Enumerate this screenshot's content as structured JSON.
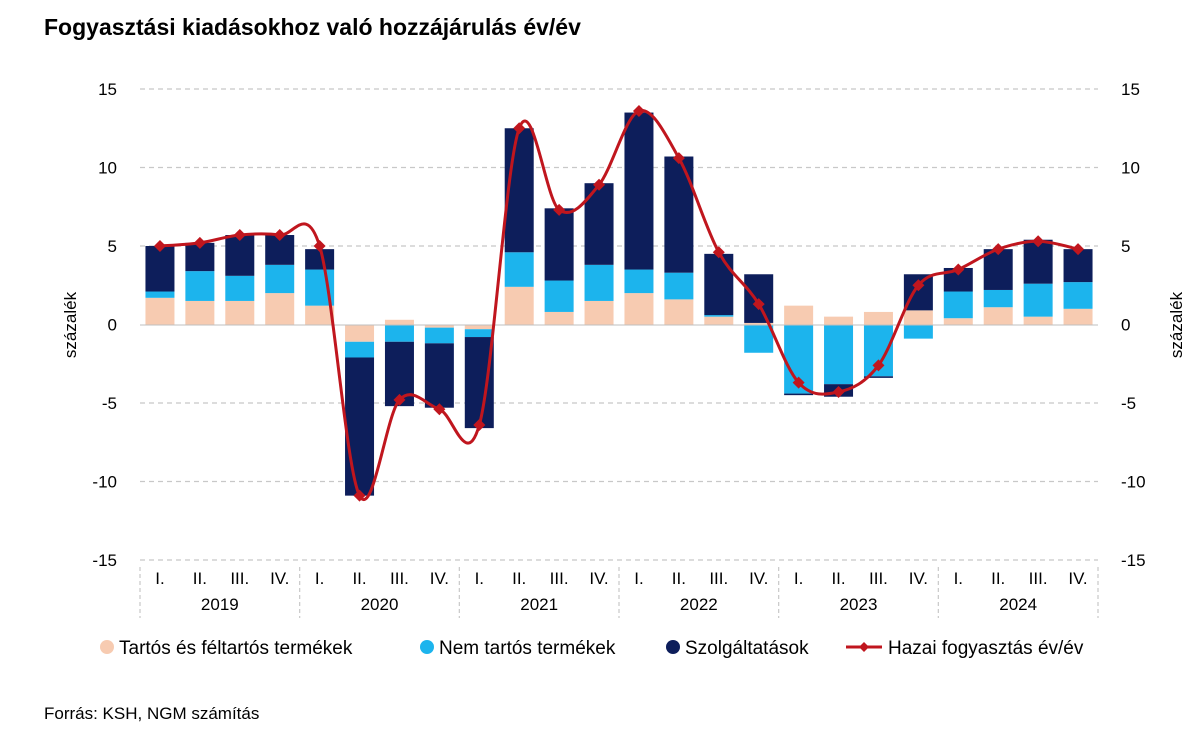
{
  "title": "Fogyasztási kiadásokhoz való hozzájárulás év/év",
  "source": "Forrás: KSH, NGM számítás",
  "chart_data": {
    "type": "bar",
    "stacked": true,
    "ylabel_left": "százalék",
    "ylabel_right": "százalék",
    "ylim": [
      -15,
      15
    ],
    "yticks": [
      15,
      10,
      5,
      0,
      -5,
      -10,
      -15
    ],
    "grid": true,
    "legend_position": "bottom",
    "years": [
      "2019",
      "2020",
      "2021",
      "2022",
      "2023",
      "2024"
    ],
    "quarters": [
      "I.",
      "II.",
      "III.",
      "IV."
    ],
    "series": [
      {
        "name": "Tartós és féltartós termékek",
        "type": "bar",
        "color": "#f7cbb1",
        "values": [
          1.7,
          1.5,
          1.5,
          2.0,
          1.2,
          -1.1,
          0.3,
          -0.2,
          -0.3,
          2.4,
          0.8,
          1.5,
          2.0,
          1.6,
          0.5,
          0.1,
          1.2,
          0.5,
          0.8,
          0.9,
          0.4,
          1.1,
          0.5,
          1.0
        ]
      },
      {
        "name": "Nem tartós termékek",
        "type": "bar",
        "color": "#1cb4ed",
        "values": [
          0.4,
          1.9,
          1.6,
          1.8,
          2.3,
          -1.0,
          -1.1,
          -1.0,
          -0.5,
          2.2,
          2.0,
          2.3,
          1.5,
          1.7,
          0.1,
          -1.8,
          -4.4,
          -3.8,
          -3.3,
          -0.9,
          1.7,
          1.1,
          2.1,
          1.7
        ]
      },
      {
        "name": "Szolgáltatások",
        "type": "bar",
        "color": "#0d1e5b",
        "values": [
          2.9,
          1.8,
          2.6,
          1.9,
          1.3,
          -8.8,
          -4.1,
          -4.1,
          -5.8,
          7.9,
          4.6,
          5.2,
          10.0,
          7.4,
          3.9,
          3.1,
          -0.1,
          -0.8,
          -0.1,
          2.3,
          1.5,
          2.6,
          2.8,
          2.1
        ]
      },
      {
        "name": "Hazai fogyasztás év/év",
        "type": "line",
        "color": "#c0161e",
        "values": [
          5.0,
          5.2,
          5.7,
          5.7,
          5.0,
          -10.9,
          -4.8,
          -5.4,
          -6.4,
          12.5,
          7.3,
          8.9,
          13.6,
          10.6,
          4.6,
          1.3,
          -3.7,
          -4.3,
          -2.6,
          2.5,
          3.5,
          4.8,
          5.3,
          4.8
        ]
      }
    ]
  }
}
